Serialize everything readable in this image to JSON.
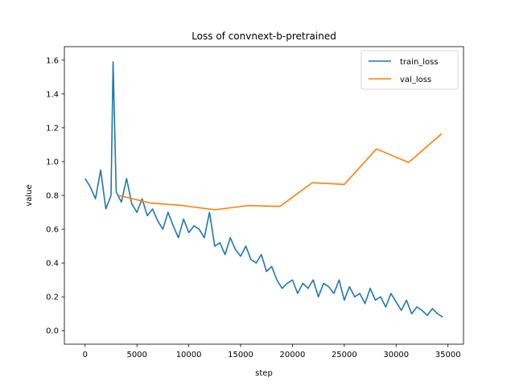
{
  "chart_data": {
    "type": "line",
    "title": "Loss of convnext-b-pretrained",
    "xlabel": "step",
    "ylabel": "value",
    "xlim": [
      -2000,
      36500
    ],
    "ylim": [
      -0.08,
      1.68
    ],
    "xticks": [
      0,
      5000,
      10000,
      15000,
      20000,
      25000,
      30000,
      35000
    ],
    "yticks": [
      0.0,
      0.2,
      0.4,
      0.6,
      0.8,
      1.0,
      1.2,
      1.4,
      1.6
    ],
    "grid": false,
    "legend_position": "top-right",
    "series": [
      {
        "name": "train_loss",
        "color": "#1f77b4",
        "x": [
          0,
          500,
          1000,
          1500,
          2000,
          2500,
          2700,
          3000,
          3500,
          4000,
          4500,
          5000,
          5500,
          6000,
          6500,
          7000,
          7500,
          8000,
          8500,
          9000,
          9500,
          10000,
          10500,
          11000,
          11500,
          12000,
          12500,
          13000,
          13500,
          14000,
          14500,
          15000,
          15500,
          16000,
          16500,
          17000,
          17500,
          18000,
          18500,
          19000,
          19500,
          20000,
          20500,
          21000,
          21500,
          22000,
          22500,
          23000,
          23500,
          24000,
          24500,
          25000,
          25500,
          26000,
          26500,
          27000,
          27500,
          28000,
          28500,
          29000,
          29500,
          30000,
          30500,
          31000,
          31500,
          32000,
          32500,
          33000,
          33500,
          34000,
          34500
        ],
        "y": [
          0.9,
          0.85,
          0.78,
          0.95,
          0.72,
          0.8,
          1.59,
          0.82,
          0.76,
          0.9,
          0.75,
          0.7,
          0.78,
          0.68,
          0.72,
          0.65,
          0.6,
          0.7,
          0.62,
          0.55,
          0.66,
          0.58,
          0.62,
          0.6,
          0.55,
          0.7,
          0.5,
          0.52,
          0.45,
          0.55,
          0.48,
          0.44,
          0.5,
          0.42,
          0.4,
          0.45,
          0.35,
          0.38,
          0.3,
          0.25,
          0.28,
          0.3,
          0.22,
          0.28,
          0.25,
          0.3,
          0.2,
          0.28,
          0.26,
          0.22,
          0.3,
          0.18,
          0.26,
          0.2,
          0.22,
          0.16,
          0.25,
          0.18,
          0.2,
          0.14,
          0.22,
          0.17,
          0.12,
          0.18,
          0.1,
          0.14,
          0.12,
          0.09,
          0.13,
          0.1,
          0.08
        ]
      },
      {
        "name": "val_loss",
        "color": "#ff7f0e",
        "x": [
          3200,
          6300,
          9400,
          12500,
          15700,
          18800,
          21900,
          25000,
          28100,
          31200,
          34400
        ],
        "y": [
          0.8,
          0.755,
          0.74,
          0.715,
          0.74,
          0.735,
          0.875,
          0.865,
          1.075,
          0.995,
          1.165
        ]
      }
    ]
  }
}
